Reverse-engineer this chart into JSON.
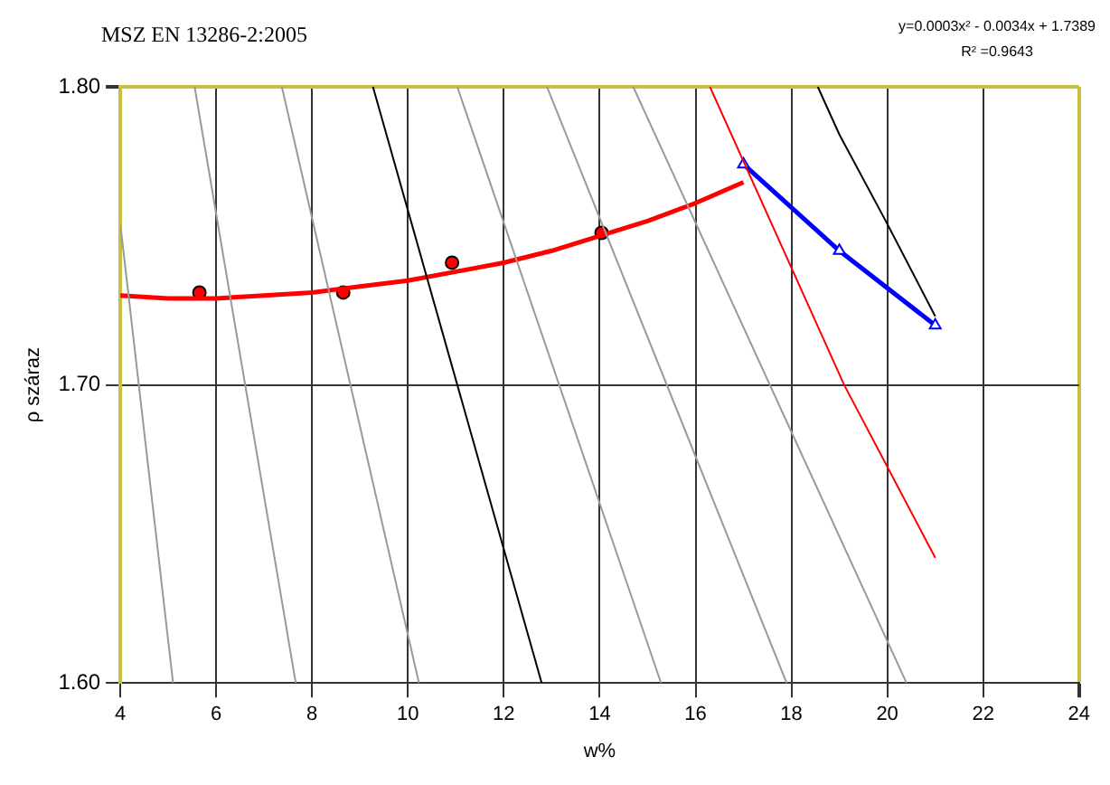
{
  "chart_data": {
    "type": "line",
    "title": "MSZ EN 13286-2:2005",
    "xlabel": "w%",
    "ylabel": "ρ száraz",
    "annotations": [
      "y=0.0003x² - 0.0034x + 1.7389",
      "R² =0.9643"
    ],
    "xlim": [
      4,
      24
    ],
    "xticks": [
      4,
      6,
      8,
      10,
      12,
      14,
      16,
      18,
      20,
      22,
      24
    ],
    "ylim": [
      1.6,
      1.8
    ],
    "yticks": [
      {
        "value": 1.6,
        "label": "1.60"
      },
      {
        "value": 1.7,
        "label": "1.70"
      },
      {
        "value": 1.8,
        "label": "1.80"
      }
    ],
    "grid": true,
    "legend": false,
    "series": [
      {
        "type": "line",
        "color": "#999999",
        "x": [
          4,
          5.1
        ],
        "values": [
          1.754,
          1.6
        ]
      },
      {
        "type": "line",
        "color": "#999999",
        "x": [
          5.55,
          7.66
        ],
        "values": [
          1.8,
          1.6
        ]
      },
      {
        "type": "line",
        "color": "#999999",
        "x": [
          7.37,
          10.23
        ],
        "values": [
          1.8,
          1.6
        ]
      },
      {
        "type": "line",
        "color": "#000000",
        "x": [
          9.27,
          12.79
        ],
        "values": [
          1.8,
          1.6
        ]
      },
      {
        "type": "line",
        "color": "#999999",
        "x": [
          11.03,
          15.28
        ],
        "values": [
          1.8,
          1.6
        ]
      },
      {
        "type": "line",
        "color": "#999999",
        "x": [
          12.9,
          17.9
        ],
        "values": [
          1.8,
          1.6
        ]
      },
      {
        "type": "line",
        "color": "#999999",
        "x": [
          14.7,
          20.4
        ],
        "values": [
          1.8,
          1.6
        ]
      },
      {
        "type": "line",
        "color": "#ff0000",
        "x": [
          16.3,
          19.1,
          21.0
        ],
        "values": [
          1.8,
          1.7,
          1.642
        ]
      },
      {
        "type": "line",
        "color": "#000000",
        "x": [
          18.55,
          19.0,
          20.0,
          21.0
        ],
        "values": [
          1.8,
          1.784,
          1.754,
          1.723
        ]
      },
      {
        "type": "line",
        "color": "#ff0000",
        "marker": "none",
        "x": [
          4,
          5,
          6,
          7,
          8,
          9,
          10,
          11,
          12,
          13,
          14,
          15,
          16,
          17
        ],
        "values": [
          1.73,
          1.729,
          1.729,
          1.73,
          1.731,
          1.733,
          1.735,
          1.738,
          1.741,
          1.745,
          1.75,
          1.755,
          1.761,
          1.768
        ]
      },
      {
        "type": "scatter",
        "color": "#ff0000",
        "marker": "circle",
        "x": [
          5.65,
          8.65,
          10.92,
          14.04
        ],
        "values": [
          1.731,
          1.731,
          1.741,
          1.751
        ]
      },
      {
        "type": "line",
        "color": "#0000ff",
        "marker": "triangle",
        "x": [
          17.0,
          19.0,
          21.0
        ],
        "values": [
          1.774,
          1.745,
          1.72
        ]
      }
    ]
  }
}
